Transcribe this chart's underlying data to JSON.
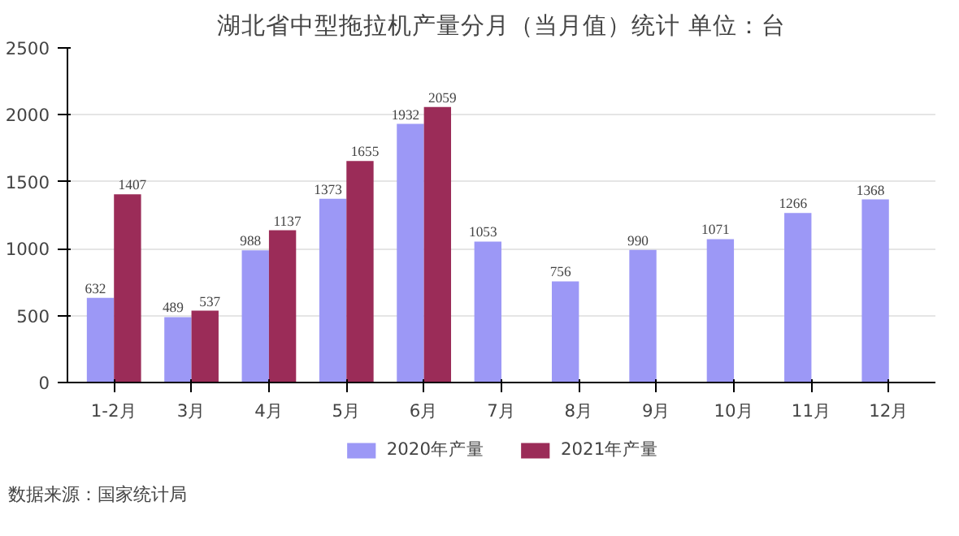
{
  "chart_data": {
    "type": "bar",
    "title": "湖北省中型拖拉机产量分月（当月值）统计 单位：台",
    "categories": [
      "1-2月",
      "3月",
      "4月",
      "5月",
      "6月",
      "7月",
      "8月",
      "9月",
      "10月",
      "11月",
      "12月"
    ],
    "series": [
      {
        "name": "2020年产量",
        "color": "#9c98f6",
        "values": [
          632,
          489,
          988,
          1373,
          1932,
          1053,
          756,
          990,
          1071,
          1266,
          1368
        ]
      },
      {
        "name": "2021年产量",
        "color": "#9b2c58",
        "values": [
          1407,
          537,
          1137,
          1655,
          2059,
          null,
          null,
          null,
          null,
          null,
          null
        ]
      }
    ],
    "ylim": [
      0,
      2500
    ],
    "yticks": [
      0,
      500,
      1000,
      1500,
      2000,
      2500
    ],
    "grid": "y",
    "legend": "bottom",
    "data_labels": true,
    "annotations": [
      "数据来源：国家统计局"
    ]
  }
}
